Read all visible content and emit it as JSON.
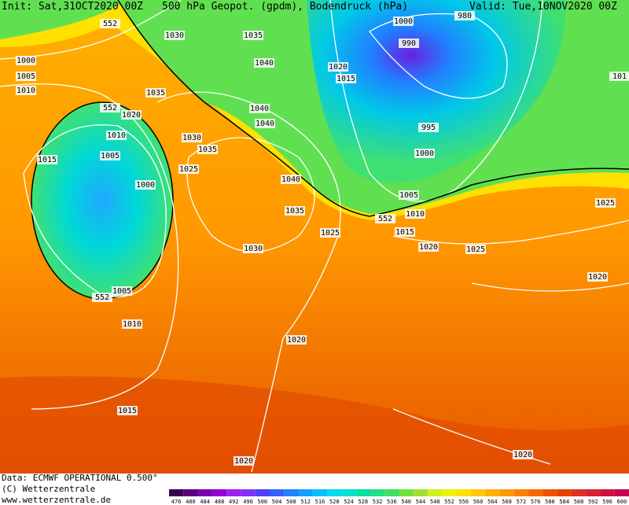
{
  "header": {
    "init": "Init: Sat,31OCT2020 00Z",
    "title": "500 hPa Geopot. (gpdm), Bodendruck (hPa)",
    "valid": "Valid: Tue,10NOV2020 00Z"
  },
  "map": {
    "isobar_labels": [
      "552",
      "1030",
      "1035",
      "1000",
      "980",
      "990",
      "1020",
      "1015",
      "1000",
      "1005",
      "1010",
      "1040",
      "1035",
      "552",
      "1020",
      "1040",
      "1040",
      "1010",
      "1030",
      "1035",
      "1015",
      "1005",
      "1025",
      "1000",
      "995",
      "1000",
      "1040",
      "1005",
      "552",
      "1010",
      "1015",
      "1035",
      "1025",
      "1030",
      "1020",
      "1025",
      "1025",
      "1020",
      "1005",
      "552",
      "1010",
      "1020",
      "1015",
      "1020",
      "1020",
      "101"
    ]
  },
  "footer": {
    "data": "Data: ECMWF OPERATIONAL 0.500°",
    "copyright": "(C) Wetterzentrale",
    "url": "www.wetterzentrale.de"
  },
  "legend": {
    "levels": [
      476,
      480,
      484,
      488,
      492,
      496,
      500,
      504,
      508,
      512,
      516,
      520,
      524,
      528,
      532,
      536,
      540,
      544,
      548,
      552,
      556,
      560,
      564,
      568,
      572,
      576,
      580,
      584,
      588,
      592,
      596,
      600
    ],
    "colors": [
      "#3a0050",
      "#5a0080",
      "#7a00b0",
      "#9400d3",
      "#a020f0",
      "#8030ff",
      "#5040ff",
      "#3060ff",
      "#2080ff",
      "#10a0ff",
      "#00c0ff",
      "#00d8f0",
      "#00e0d0",
      "#00e0a0",
      "#20e080",
      "#40e060",
      "#70e040",
      "#a0e030",
      "#d0f020",
      "#f0f000",
      "#ffe000",
      "#ffc800",
      "#ffb000",
      "#ff9800",
      "#ff8000",
      "#f86800",
      "#f05000",
      "#e84000",
      "#e03020",
      "#d82030",
      "#d01040",
      "#c80050"
    ]
  }
}
